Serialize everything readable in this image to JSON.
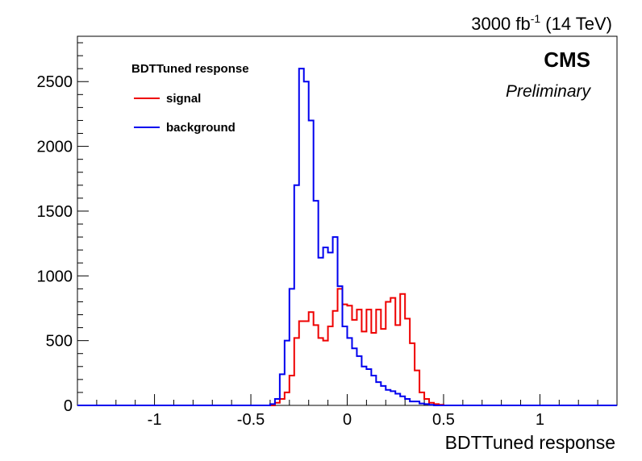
{
  "chart_data": {
    "type": "histogram",
    "title": "",
    "header": {
      "lumi_prefix": "3000 fb",
      "lumi_sup": "-1",
      "lumi_suffix": " (14 TeV)",
      "experiment": "CMS",
      "status": "Preliminary"
    },
    "xlabel": "BDTTuned response",
    "ylabel": "",
    "xlim": [
      -1.4,
      1.4
    ],
    "ylim": [
      0,
      2850
    ],
    "x_ticks": [
      -1,
      -0.5,
      0,
      0.5,
      1
    ],
    "x_tick_labels": [
      "-1",
      "-0.5",
      "0",
      "0.5",
      "1"
    ],
    "y_ticks": [
      0,
      500,
      1000,
      1500,
      2000,
      2500
    ],
    "y_tick_labels": [
      "0",
      "500",
      "1000",
      "1500",
      "2000",
      "2500"
    ],
    "grid": false,
    "legend": {
      "title": "BDTTuned response",
      "position": "top-left"
    },
    "bin_width": 0.025,
    "series": [
      {
        "name": "signal",
        "color": "#ee0000",
        "bins": [
          [
            -0.4,
            0
          ],
          [
            -0.375,
            20
          ],
          [
            -0.35,
            50
          ],
          [
            -0.325,
            100
          ],
          [
            -0.3,
            230
          ],
          [
            -0.275,
            520
          ],
          [
            -0.25,
            650
          ],
          [
            -0.225,
            650
          ],
          [
            -0.2,
            720
          ],
          [
            -0.175,
            620
          ],
          [
            -0.15,
            520
          ],
          [
            -0.125,
            500
          ],
          [
            -0.1,
            610
          ],
          [
            -0.075,
            730
          ],
          [
            -0.05,
            900
          ],
          [
            -0.025,
            780
          ],
          [
            0,
            770
          ],
          [
            0.025,
            660
          ],
          [
            0.05,
            740
          ],
          [
            0.075,
            570
          ],
          [
            0.1,
            740
          ],
          [
            0.125,
            560
          ],
          [
            0.15,
            740
          ],
          [
            0.175,
            590
          ],
          [
            0.2,
            800
          ],
          [
            0.225,
            830
          ],
          [
            0.25,
            620
          ],
          [
            0.275,
            860
          ],
          [
            0.3,
            670
          ],
          [
            0.325,
            480
          ],
          [
            0.35,
            270
          ],
          [
            0.375,
            100
          ],
          [
            0.4,
            50
          ],
          [
            0.425,
            20
          ],
          [
            0.45,
            10
          ],
          [
            0.475,
            5
          ],
          [
            0.5,
            0
          ],
          [
            0.525,
            0
          ]
        ]
      },
      {
        "name": "background",
        "color": "#0000ee",
        "bins": [
          [
            -0.4,
            10
          ],
          [
            -0.375,
            50
          ],
          [
            -0.35,
            240
          ],
          [
            -0.325,
            500
          ],
          [
            -0.3,
            900
          ],
          [
            -0.275,
            1700
          ],
          [
            -0.25,
            2600
          ],
          [
            -0.225,
            2500
          ],
          [
            -0.2,
            2200
          ],
          [
            -0.175,
            1580
          ],
          [
            -0.15,
            1140
          ],
          [
            -0.125,
            1220
          ],
          [
            -0.1,
            1180
          ],
          [
            -0.075,
            1300
          ],
          [
            -0.05,
            920
          ],
          [
            -0.025,
            610
          ],
          [
            0,
            520
          ],
          [
            0.025,
            440
          ],
          [
            0.05,
            380
          ],
          [
            0.075,
            300
          ],
          [
            0.1,
            280
          ],
          [
            0.125,
            230
          ],
          [
            0.15,
            180
          ],
          [
            0.175,
            150
          ],
          [
            0.2,
            120
          ],
          [
            0.225,
            110
          ],
          [
            0.25,
            90
          ],
          [
            0.275,
            70
          ],
          [
            0.3,
            50
          ],
          [
            0.325,
            30
          ],
          [
            0.35,
            30
          ],
          [
            0.375,
            15
          ],
          [
            0.4,
            10
          ],
          [
            0.425,
            5
          ],
          [
            0.45,
            0
          ],
          [
            0.475,
            0
          ]
        ]
      }
    ]
  }
}
